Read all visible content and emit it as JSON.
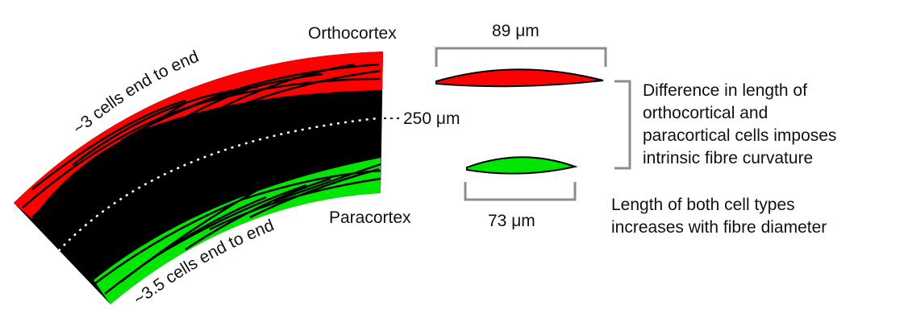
{
  "labels": {
    "orthocortex": "Orthocortex",
    "paracortex": "Paracortex",
    "ortho_cells": "~3 cells end to end",
    "para_cells": "~3.5 cells end to end",
    "radius": "250 μm",
    "ortho_length": "89 μm",
    "para_length": "73 μm"
  },
  "notes": {
    "difference": [
      "Difference in length of",
      "orthocortical and",
      "paracortical cells imposes",
      "intrinsic fibre curvature"
    ],
    "both": [
      "Length of both cell types",
      "increases with fibre diameter"
    ]
  },
  "colors": {
    "orthocortex": "#ff0000",
    "paracortex": "#00e600",
    "fibre": "#000000",
    "bracket": "#8c8c8c"
  }
}
